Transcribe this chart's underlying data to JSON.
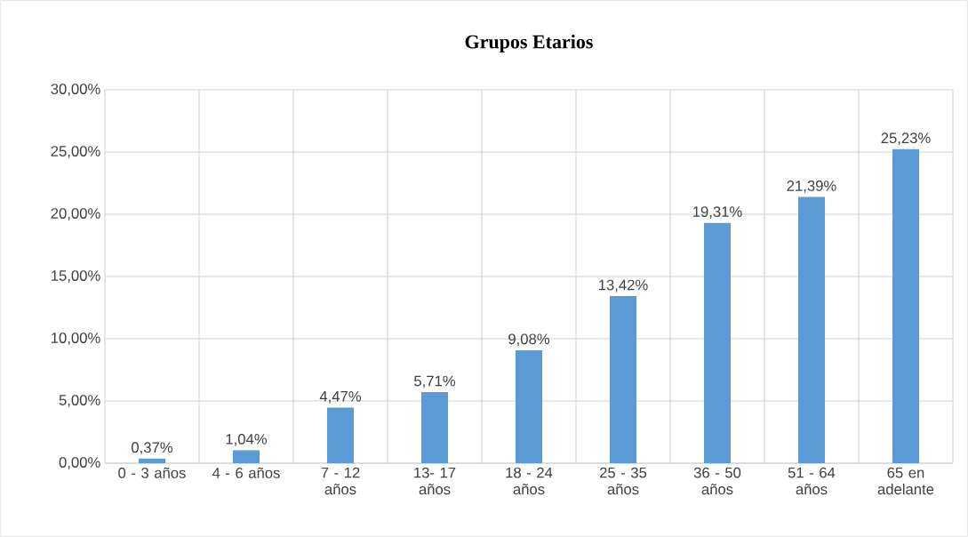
{
  "chart_data": {
    "type": "bar",
    "title": "Grupos Etarios",
    "categories": [
      "0 - 3 años",
      "4 - 6 años",
      "7 - 12 años",
      "13- 17 años",
      "18 - 24 años",
      "25 - 35 años",
      "36 - 50 años",
      "51 - 64 años",
      "65 en adelante"
    ],
    "values": [
      0.37,
      1.04,
      4.47,
      5.71,
      9.08,
      13.42,
      19.31,
      21.39,
      25.23
    ],
    "value_labels": [
      "0,37%",
      "1,04%",
      "4,47%",
      "5,71%",
      "9,08%",
      "13,42%",
      "19,31%",
      "21,39%",
      "25,23%"
    ],
    "color": "#5b9bd5",
    "ylim": [
      0,
      30
    ],
    "yticks": [
      {
        "value": 0,
        "label": "0,00%"
      },
      {
        "value": 5,
        "label": "5,00%"
      },
      {
        "value": 10,
        "label": "10,00%"
      },
      {
        "value": 15,
        "label": "15,00%"
      },
      {
        "value": 20,
        "label": "20,00%"
      },
      {
        "value": 25,
        "label": "25,00%"
      },
      {
        "value": 30,
        "label": "30,00%"
      }
    ],
    "grid": true
  }
}
